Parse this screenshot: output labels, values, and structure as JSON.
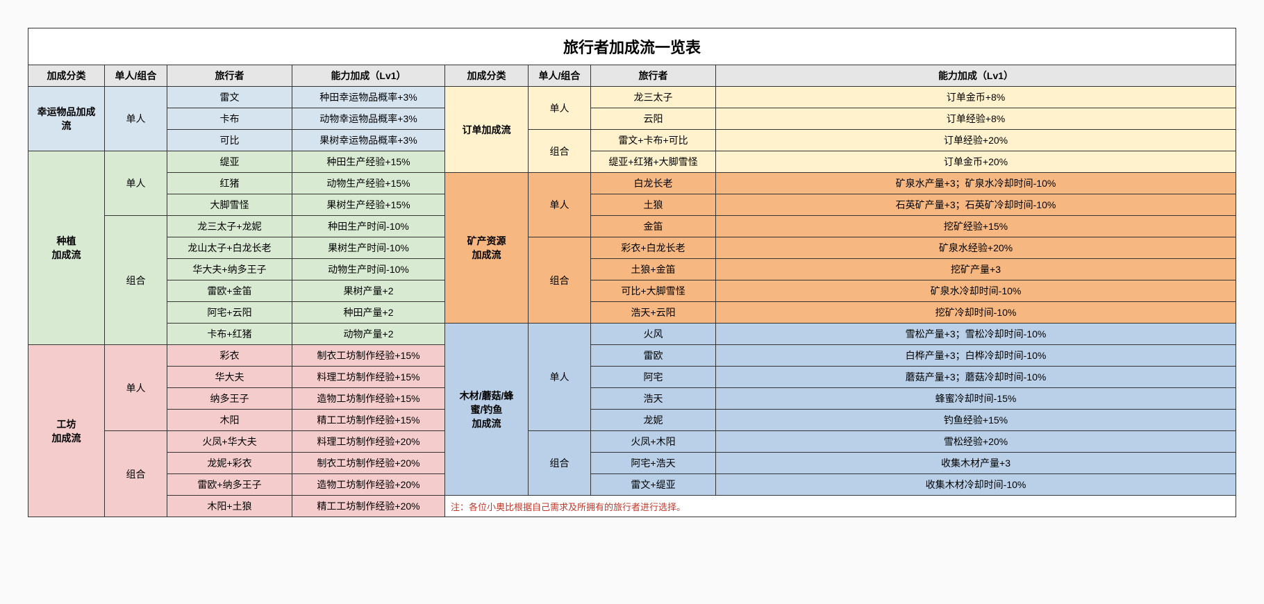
{
  "title": "旅行者加成流一览表",
  "headers": [
    "加成分类",
    "单人/组合",
    "旅行者",
    "能力加成（Lv1）"
  ],
  "colors": {
    "header": "#e6e6e6",
    "lucky": "#d6e4f0",
    "plant": "#d9ead3",
    "workshop": "#f4cccc",
    "order": "#fff2cc",
    "mine": "#f6b781",
    "wood": "#b9d0e8",
    "solo_light": "#ffffff",
    "note_color": "#c0392b"
  },
  "note": "注：各位小奥比根据自己需求及所拥有的旅行者进行选择。",
  "left": [
    {
      "cat": "幸运物品加成流",
      "cat_color": "#d6e4f0",
      "groups": [
        {
          "mode": "单人",
          "rows": [
            {
              "t": "雷文",
              "a": "种田幸运物品概率+3%"
            },
            {
              "t": "卡布",
              "a": "动物幸运物品概率+3%"
            },
            {
              "t": "可比",
              "a": "果树幸运物品概率+3%"
            }
          ]
        }
      ],
      "row_color": "#d6e4f0"
    },
    {
      "cat": "种植\n加成流",
      "cat_color": "#d9ead3",
      "groups": [
        {
          "mode": "单人",
          "rows": [
            {
              "t": "缇亚",
              "a": "种田生产经验+15%"
            },
            {
              "t": "红猪",
              "a": "动物生产经验+15%"
            },
            {
              "t": "大脚雪怪",
              "a": "果树生产经验+15%"
            }
          ]
        },
        {
          "mode": "组合",
          "rows": [
            {
              "t": "龙三太子+龙妮",
              "a": "种田生产时间-10%"
            },
            {
              "t": "龙山太子+白龙长老",
              "a": "果树生产时间-10%"
            },
            {
              "t": "华大夫+纳多王子",
              "a": "动物生产时间-10%"
            },
            {
              "t": "雷欧+金笛",
              "a": "果树产量+2"
            },
            {
              "t": "阿宅+云阳",
              "a": "种田产量+2"
            },
            {
              "t": "卡布+红猪",
              "a": "动物产量+2"
            }
          ]
        }
      ],
      "row_color": "#d9ead3"
    },
    {
      "cat": "工坊\n加成流",
      "cat_color": "#f4cccc",
      "groups": [
        {
          "mode": "单人",
          "rows": [
            {
              "t": "彩衣",
              "a": "制衣工坊制作经验+15%"
            },
            {
              "t": "华大夫",
              "a": "料理工坊制作经验+15%"
            },
            {
              "t": "纳多王子",
              "a": "造物工坊制作经验+15%"
            },
            {
              "t": "木阳",
              "a": "精工工坊制作经验+15%"
            }
          ]
        },
        {
          "mode": "组合",
          "rows": [
            {
              "t": "火凤+华大夫",
              "a": "料理工坊制作经验+20%"
            },
            {
              "t": "龙妮+彩衣",
              "a": "制衣工坊制作经验+20%"
            },
            {
              "t": "雷欧+纳多王子",
              "a": "造物工坊制作经验+20%"
            },
            {
              "t": "木阳+土狼",
              "a": "精工工坊制作经验+20%"
            }
          ]
        }
      ],
      "row_color": "#f4cccc"
    }
  ],
  "right": [
    {
      "cat": "订单加成流",
      "cat_color": "#fff2cc",
      "groups": [
        {
          "mode": "单人",
          "rows": [
            {
              "t": "龙三太子",
              "a": "订单金币+8%"
            },
            {
              "t": "云阳",
              "a": "订单经验+8%"
            }
          ]
        },
        {
          "mode": "组合",
          "rows": [
            {
              "t": "雷文+卡布+可比",
              "a": "订单经验+20%"
            },
            {
              "t": "缇亚+红猪+大脚雪怪",
              "a": "订单金币+20%"
            }
          ]
        }
      ],
      "row_color": "#fff2cc"
    },
    {
      "cat": "矿产资源\n加成流",
      "cat_color": "#f6b781",
      "groups": [
        {
          "mode": "单人",
          "rows": [
            {
              "t": "白龙长老",
              "a": "矿泉水产量+3；矿泉水冷却时间-10%"
            },
            {
              "t": "土狼",
              "a": "石英矿产量+3；石英矿冷却时间-10%"
            },
            {
              "t": "金笛",
              "a": "挖矿经验+15%"
            }
          ]
        },
        {
          "mode": "组合",
          "rows": [
            {
              "t": "彩衣+白龙长老",
              "a": "矿泉水经验+20%"
            },
            {
              "t": "土狼+金笛",
              "a": "挖矿产量+3"
            },
            {
              "t": "可比+大脚雪怪",
              "a": "矿泉水冷却时间-10%"
            },
            {
              "t": "浩天+云阳",
              "a": "挖矿冷却时间-10%"
            }
          ]
        }
      ],
      "row_color": "#f6b781"
    },
    {
      "cat": "木材/蘑菇/蜂\n蜜/钓鱼\n加成流",
      "cat_color": "#b9d0e8",
      "groups": [
        {
          "mode": "单人",
          "rows": [
            {
              "t": "火风",
              "a": "雪松产量+3；雪松冷却时间-10%"
            },
            {
              "t": "雷欧",
              "a": "白桦产量+3；白桦冷却时间-10%"
            },
            {
              "t": "阿宅",
              "a": "蘑菇产量+3；蘑菇冷却时间-10%"
            },
            {
              "t": "浩天",
              "a": "蜂蜜冷却时间-15%"
            },
            {
              "t": "龙妮",
              "a": "钓鱼经验+15%"
            }
          ]
        },
        {
          "mode": "组合",
          "rows": [
            {
              "t": "火凤+木阳",
              "a": "雪松经验+20%"
            },
            {
              "t": "阿宅+浩天",
              "a": "收集木材产量+3"
            },
            {
              "t": "雷文+缇亚",
              "a": "收集木材冷却时间-10%"
            }
          ]
        }
      ],
      "row_color": "#b9d0e8"
    }
  ]
}
